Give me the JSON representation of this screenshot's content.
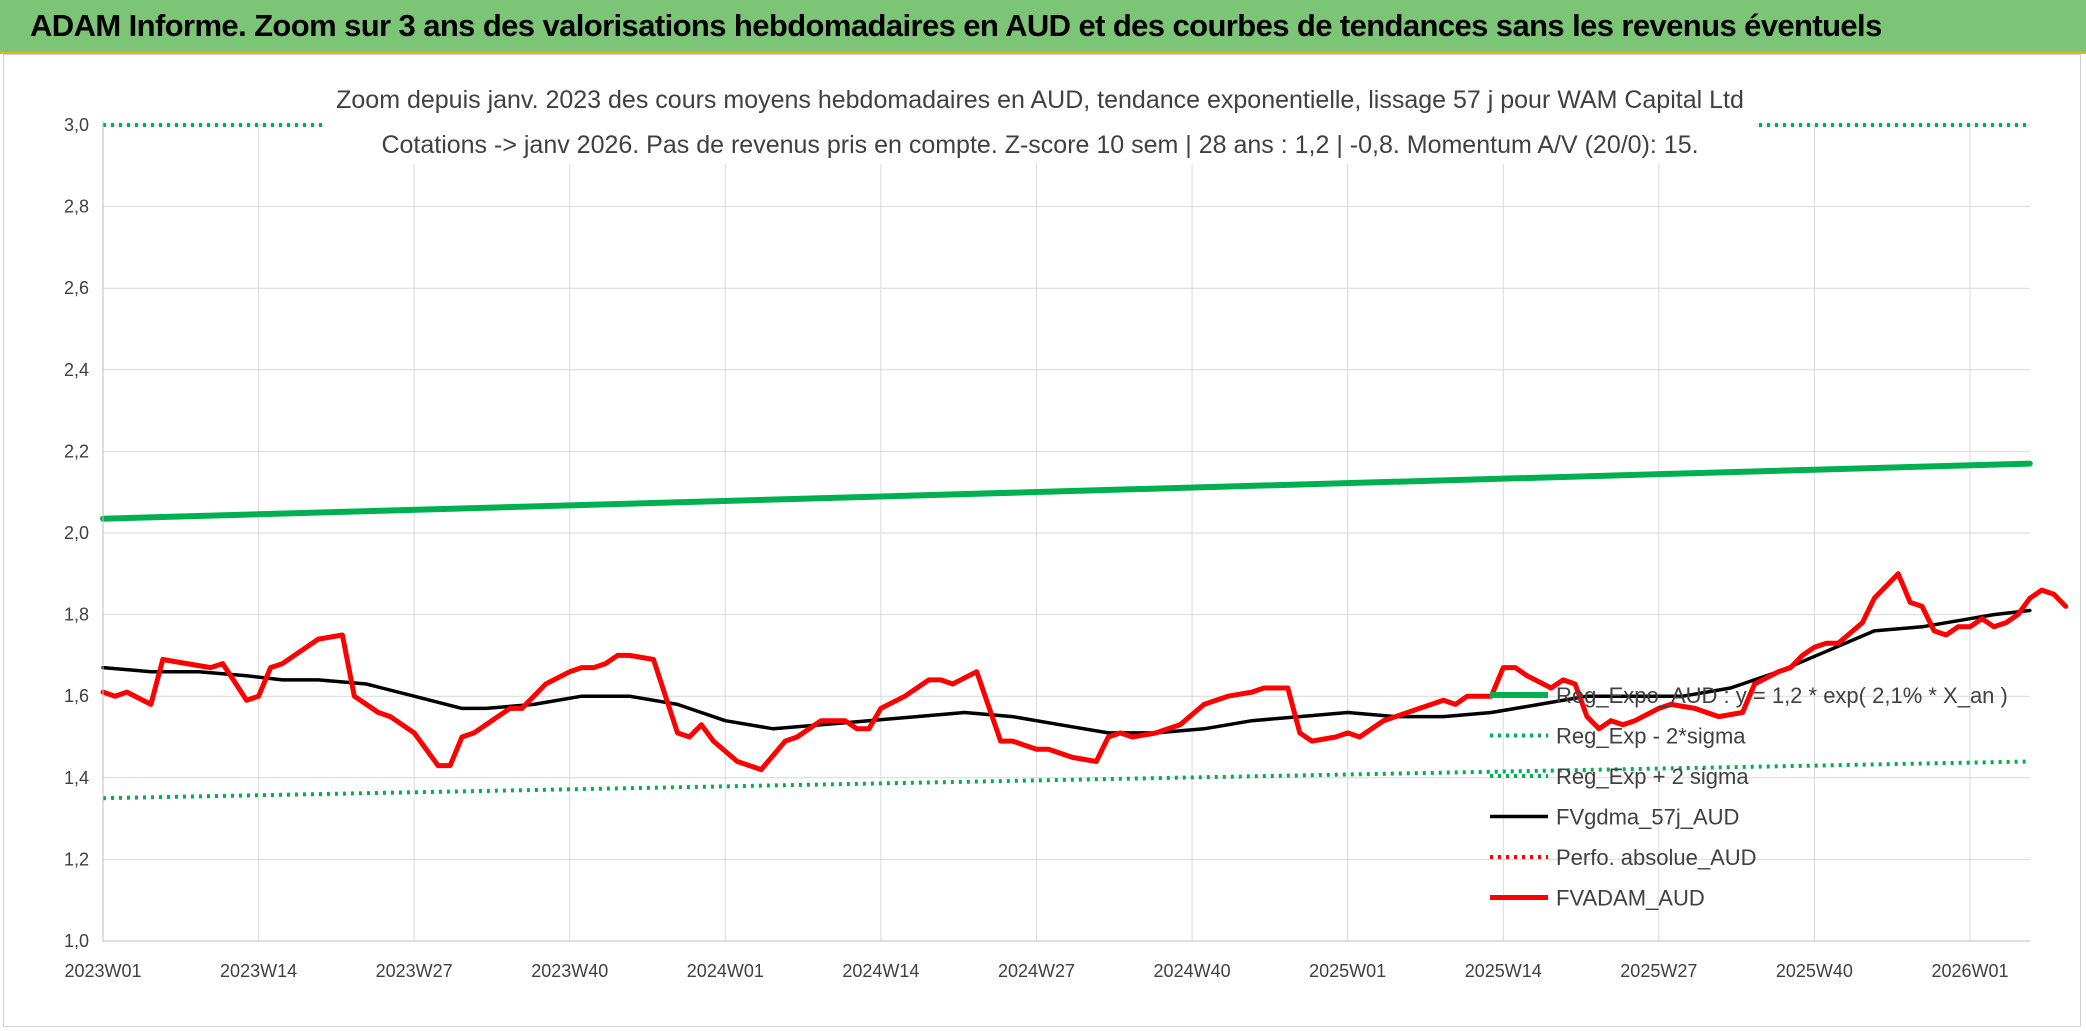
{
  "banner": {
    "title": "ADAM Informe. Zoom sur 3 ans des valorisations hebdomadaires en AUD et des courbes de tendances sans les revenus éventuels"
  },
  "colors": {
    "banner_bg": "#7cc576",
    "reg_expo": "#00b050",
    "fvgdma": "#000000",
    "fvadam": "#ff0000",
    "perfo": "#ff0000"
  },
  "chart_data": {
    "type": "line",
    "title": "Zoom depuis janv. 2023 des cours moyens hebdomadaires en AUD, tendance exponentielle, lissage 57 j pour WAM Capital Ltd",
    "subtitle": "Cotations -> janv 2026. Pas de revenus pris en compte. Z-score 10 sem | 28 ans : 1,2 | -0,8. Momentum A/V (20/0): 15.",
    "ylim": [
      1.0,
      3.0
    ],
    "yticks": [
      "1,0",
      "1,2",
      "1,4",
      "1,6",
      "1,8",
      "2,0",
      "2,2",
      "2,4",
      "2,6",
      "2,8",
      "3,0"
    ],
    "xticks": [
      "2023W01",
      "2023W14",
      "2023W27",
      "2023W40",
      "2024W01",
      "2024W14",
      "2024W27",
      "2024W40",
      "2025W01",
      "2025W14",
      "2025W27",
      "2025W40",
      "2026W01"
    ],
    "x_range_weeks": [
      0,
      161
    ],
    "grid": true,
    "legend_position": "bottom-right",
    "series": [
      {
        "name": "Reg_Expo_AUD : y = 1,2 * exp( 2,1% *  X_an )",
        "style": "solid-thick",
        "color": "#00b050",
        "points": [
          [
            0,
            2.035
          ],
          [
            161,
            2.17
          ]
        ]
      },
      {
        "name": "Reg_Exp - 2*sigma",
        "style": "dotted",
        "color": "#00b050",
        "points": [
          [
            0,
            1.35
          ],
          [
            161,
            1.44
          ]
        ]
      },
      {
        "name": "Reg_Exp + 2 sigma",
        "style": "dotted",
        "color": "#00b050",
        "points": [
          [
            0,
            3.0
          ],
          [
            161,
            3.0
          ]
        ]
      },
      {
        "name": "FVgdma_57j_AUD",
        "style": "solid",
        "color": "#000000",
        "points": [
          [
            0,
            1.67
          ],
          [
            4,
            1.66
          ],
          [
            8,
            1.66
          ],
          [
            12,
            1.65
          ],
          [
            15,
            1.64
          ],
          [
            18,
            1.64
          ],
          [
            22,
            1.63
          ],
          [
            26,
            1.6
          ],
          [
            30,
            1.57
          ],
          [
            32,
            1.57
          ],
          [
            36,
            1.58
          ],
          [
            40,
            1.6
          ],
          [
            44,
            1.6
          ],
          [
            48,
            1.58
          ],
          [
            52,
            1.54
          ],
          [
            56,
            1.52
          ],
          [
            60,
            1.53
          ],
          [
            64,
            1.54
          ],
          [
            68,
            1.55
          ],
          [
            72,
            1.56
          ],
          [
            76,
            1.55
          ],
          [
            80,
            1.53
          ],
          [
            84,
            1.51
          ],
          [
            88,
            1.51
          ],
          [
            92,
            1.52
          ],
          [
            96,
            1.54
          ],
          [
            100,
            1.55
          ],
          [
            104,
            1.56
          ],
          [
            108,
            1.55
          ],
          [
            112,
            1.55
          ],
          [
            116,
            1.56
          ],
          [
            120,
            1.58
          ],
          [
            124,
            1.6
          ],
          [
            128,
            1.6
          ],
          [
            132,
            1.6
          ],
          [
            136,
            1.62
          ],
          [
            140,
            1.66
          ],
          [
            144,
            1.71
          ],
          [
            148,
            1.76
          ],
          [
            152,
            1.77
          ],
          [
            156,
            1.79
          ],
          [
            158,
            1.8
          ],
          [
            161,
            1.81
          ]
        ]
      },
      {
        "name": "Perfo. absolue_AUD",
        "style": "dotted",
        "color": "#ff0000",
        "points": []
      },
      {
        "name": "FVADAM_AUD",
        "style": "solid-thick",
        "color": "#ff0000",
        "points": [
          [
            0,
            1.61
          ],
          [
            1,
            1.6
          ],
          [
            2,
            1.61
          ],
          [
            4,
            1.58
          ],
          [
            5,
            1.69
          ],
          [
            7,
            1.68
          ],
          [
            9,
            1.67
          ],
          [
            10,
            1.68
          ],
          [
            12,
            1.59
          ],
          [
            13,
            1.6
          ],
          [
            14,
            1.67
          ],
          [
            15,
            1.68
          ],
          [
            17,
            1.72
          ],
          [
            18,
            1.74
          ],
          [
            20,
            1.75
          ],
          [
            21,
            1.6
          ],
          [
            23,
            1.56
          ],
          [
            24,
            1.55
          ],
          [
            26,
            1.51
          ],
          [
            28,
            1.43
          ],
          [
            29,
            1.43
          ],
          [
            30,
            1.5
          ],
          [
            31,
            1.51
          ],
          [
            33,
            1.55
          ],
          [
            34,
            1.57
          ],
          [
            35,
            1.57
          ],
          [
            37,
            1.63
          ],
          [
            39,
            1.66
          ],
          [
            40,
            1.67
          ],
          [
            41,
            1.67
          ],
          [
            42,
            1.68
          ],
          [
            43,
            1.7
          ],
          [
            44,
            1.7
          ],
          [
            46,
            1.69
          ],
          [
            48,
            1.51
          ],
          [
            49,
            1.5
          ],
          [
            50,
            1.53
          ],
          [
            51,
            1.49
          ],
          [
            53,
            1.44
          ],
          [
            55,
            1.42
          ],
          [
            57,
            1.49
          ],
          [
            58,
            1.5
          ],
          [
            60,
            1.54
          ],
          [
            61,
            1.54
          ],
          [
            62,
            1.54
          ],
          [
            63,
            1.52
          ],
          [
            64,
            1.52
          ],
          [
            65,
            1.57
          ],
          [
            67,
            1.6
          ],
          [
            69,
            1.64
          ],
          [
            70,
            1.64
          ],
          [
            71,
            1.63
          ],
          [
            73,
            1.66
          ],
          [
            75,
            1.49
          ],
          [
            76,
            1.49
          ],
          [
            77,
            1.48
          ],
          [
            78,
            1.47
          ],
          [
            79,
            1.47
          ],
          [
            81,
            1.45
          ],
          [
            83,
            1.44
          ],
          [
            84,
            1.5
          ],
          [
            85,
            1.51
          ],
          [
            86,
            1.5
          ],
          [
            88,
            1.51
          ],
          [
            89,
            1.52
          ],
          [
            90,
            1.53
          ],
          [
            92,
            1.58
          ],
          [
            94,
            1.6
          ],
          [
            96,
            1.61
          ],
          [
            97,
            1.62
          ],
          [
            99,
            1.62
          ],
          [
            100,
            1.51
          ],
          [
            101,
            1.49
          ],
          [
            103,
            1.5
          ],
          [
            104,
            1.51
          ],
          [
            105,
            1.5
          ],
          [
            107,
            1.54
          ],
          [
            108,
            1.55
          ],
          [
            110,
            1.57
          ],
          [
            111,
            1.58
          ],
          [
            112,
            1.59
          ],
          [
            113,
            1.58
          ],
          [
            114,
            1.6
          ],
          [
            115,
            1.6
          ],
          [
            116,
            1.6
          ],
          [
            117,
            1.67
          ],
          [
            118,
            1.67
          ],
          [
            119,
            1.65
          ],
          [
            121,
            1.62
          ],
          [
            122,
            1.64
          ],
          [
            123,
            1.63
          ],
          [
            124,
            1.55
          ],
          [
            125,
            1.52
          ],
          [
            126,
            1.54
          ],
          [
            127,
            1.53
          ],
          [
            128,
            1.54
          ],
          [
            130,
            1.57
          ],
          [
            131,
            1.58
          ],
          [
            133,
            1.57
          ],
          [
            135,
            1.55
          ],
          [
            137,
            1.56
          ],
          [
            138,
            1.63
          ],
          [
            140,
            1.66
          ],
          [
            141,
            1.67
          ],
          [
            142,
            1.7
          ],
          [
            143,
            1.72
          ],
          [
            144,
            1.73
          ],
          [
            145,
            1.73
          ],
          [
            147,
            1.78
          ],
          [
            148,
            1.84
          ],
          [
            150,
            1.9
          ],
          [
            151,
            1.83
          ],
          [
            152,
            1.82
          ],
          [
            153,
            1.76
          ],
          [
            154,
            1.75
          ],
          [
            155,
            1.77
          ],
          [
            156,
            1.77
          ],
          [
            157,
            1.79
          ],
          [
            158,
            1.77
          ],
          [
            159,
            1.78
          ],
          [
            160,
            1.8
          ],
          [
            161,
            1.84
          ],
          [
            162,
            1.86
          ],
          [
            163,
            1.85
          ],
          [
            164,
            1.82
          ]
        ]
      }
    ]
  }
}
